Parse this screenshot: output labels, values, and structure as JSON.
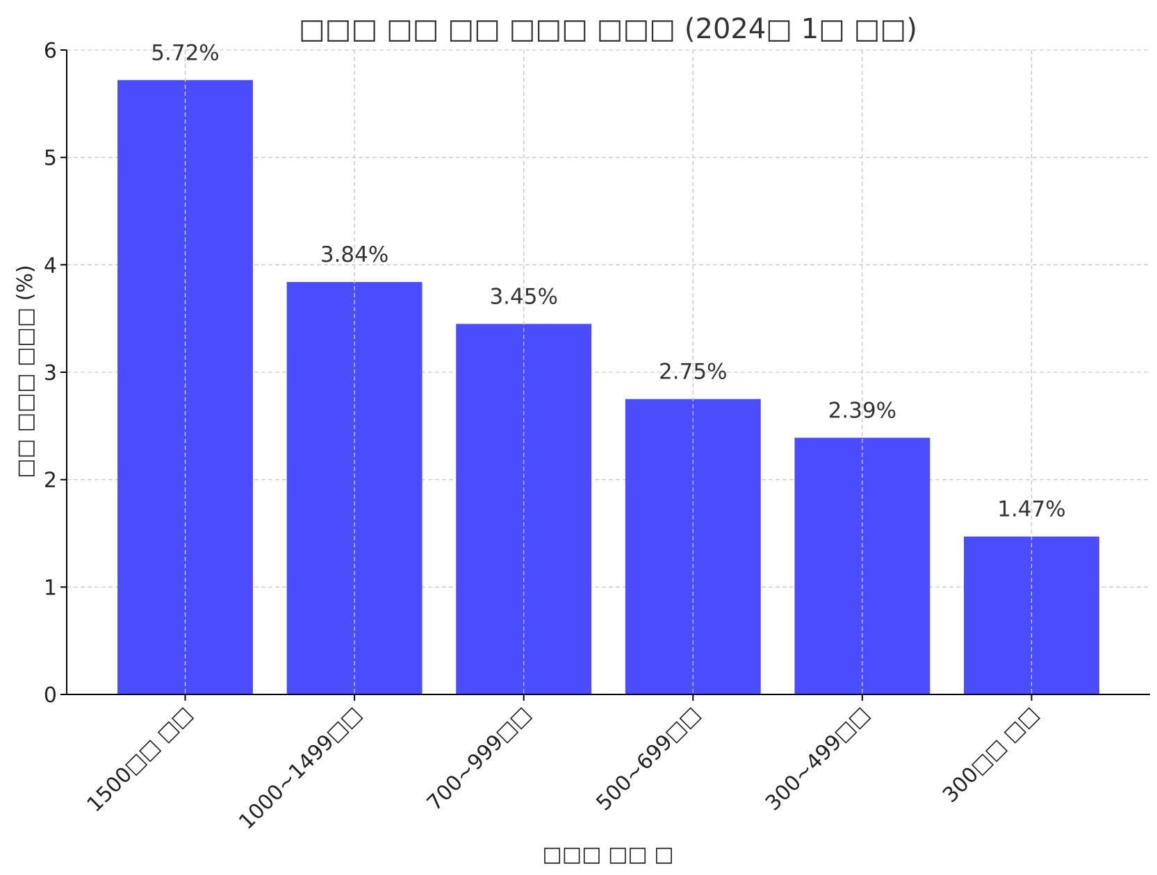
{
  "chart_data": {
    "type": "bar",
    "title": "□□□ □□ □□ □□□ □□□ (2024□ 1□ □□)",
    "xlabel": "□□□ □□ □",
    "ylabel": "□□ □□□ □□□ (%)",
    "categories": [
      "1500□□ □□",
      "1000~1499□□",
      "700~999□□",
      "500~699□□",
      "300~499□□",
      "300□□ □□"
    ],
    "values": [
      5.72,
      3.84,
      3.45,
      2.75,
      2.39,
      1.47
    ],
    "data_labels": [
      "5.72%",
      "3.84%",
      "3.45%",
      "2.75%",
      "2.39%",
      "1.47%"
    ],
    "ylim": [
      0,
      6
    ],
    "yticks": [
      0,
      1,
      2,
      3,
      4,
      5,
      6
    ],
    "grid": true,
    "bar_color": "#4b4bff"
  }
}
